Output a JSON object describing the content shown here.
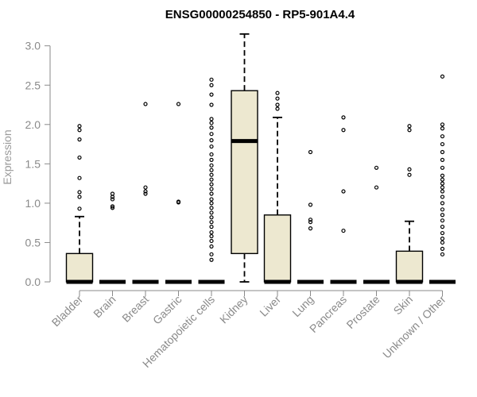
{
  "chart_data": {
    "type": "box",
    "title": "ENSG00000254850 - RP5-901A4.4",
    "xlabel": "",
    "ylabel": "Expression",
    "ylim": [
      0,
      3.1
    ],
    "yticks": [
      "0.0",
      "0.5",
      "1.0",
      "1.5",
      "2.0",
      "2.5",
      "3.0"
    ],
    "grid": false,
    "box_fill": "#ede8d0",
    "box_stroke": "#000000",
    "categories": [
      "Bladder",
      "Brain",
      "Breast",
      "Gastric",
      "Hematopoietic cells",
      "Kidney",
      "Liver",
      "Lung",
      "Pancreas",
      "Prostate",
      "Skin",
      "Unknown / Other"
    ],
    "boxes": [
      {
        "min": 0,
        "q1": 0,
        "median": 0,
        "q3": 0.36,
        "max": 0.83,
        "outliers": [
          0.93,
          1.08,
          1.14,
          1.32,
          1.58,
          1.81,
          1.93,
          1.98
        ]
      },
      {
        "min": 0,
        "q1": 0,
        "median": 0,
        "q3": 0,
        "max": 0,
        "outliers": [
          0.94,
          0.96,
          1.05,
          1.08,
          1.12
        ]
      },
      {
        "min": 0,
        "q1": 0,
        "median": 0,
        "q3": 0,
        "max": 0,
        "outliers": [
          1.12,
          1.15,
          1.2,
          2.26
        ]
      },
      {
        "min": 0,
        "q1": 0,
        "median": 0,
        "q3": 0,
        "max": 0,
        "outliers": [
          1.01,
          1.02,
          2.26
        ]
      },
      {
        "min": 0,
        "q1": 0,
        "median": 0,
        "q3": 0,
        "max": 0,
        "outliers": [
          0.28,
          0.35,
          0.45,
          0.52,
          0.58,
          0.63,
          0.7,
          0.76,
          0.82,
          0.88,
          0.94,
          1.0,
          1.05,
          1.12,
          1.18,
          1.24,
          1.3,
          1.36,
          1.42,
          1.48,
          1.55,
          1.62,
          1.72,
          1.8,
          1.88,
          1.96,
          2.02,
          2.07,
          2.25,
          2.38,
          2.5,
          2.57
        ]
      },
      {
        "min": 0,
        "q1": 0.36,
        "median": 1.79,
        "q3": 2.43,
        "max": 3.15,
        "outliers": []
      },
      {
        "min": 0,
        "q1": 0,
        "median": 0,
        "q3": 0.85,
        "max": 2.09,
        "outliers": [
          2.2,
          2.25,
          2.33,
          2.4
        ]
      },
      {
        "min": 0,
        "q1": 0,
        "median": 0,
        "q3": 0,
        "max": 0,
        "outliers": [
          0.68,
          0.76,
          0.79,
          0.98,
          1.65
        ]
      },
      {
        "min": 0,
        "q1": 0,
        "median": 0,
        "q3": 0,
        "max": 0,
        "outliers": [
          0.65,
          1.15,
          1.93,
          2.09
        ]
      },
      {
        "min": 0,
        "q1": 0,
        "median": 0,
        "q3": 0,
        "max": 0,
        "outliers": [
          1.2,
          1.45
        ]
      },
      {
        "min": 0,
        "q1": 0,
        "median": 0,
        "q3": 0.39,
        "max": 0.77,
        "outliers": [
          1.36,
          1.43,
          1.93,
          1.98
        ]
      },
      {
        "min": 0,
        "q1": 0,
        "median": 0,
        "q3": 0,
        "max": 0,
        "outliers": [
          0.35,
          0.42,
          0.5,
          0.55,
          0.62,
          0.7,
          0.78,
          0.85,
          0.92,
          1.0,
          1.08,
          1.15,
          1.2,
          1.25,
          1.3,
          1.35,
          1.45,
          1.55,
          1.65,
          1.75,
          1.85,
          1.95,
          2.0,
          2.61
        ]
      }
    ]
  }
}
